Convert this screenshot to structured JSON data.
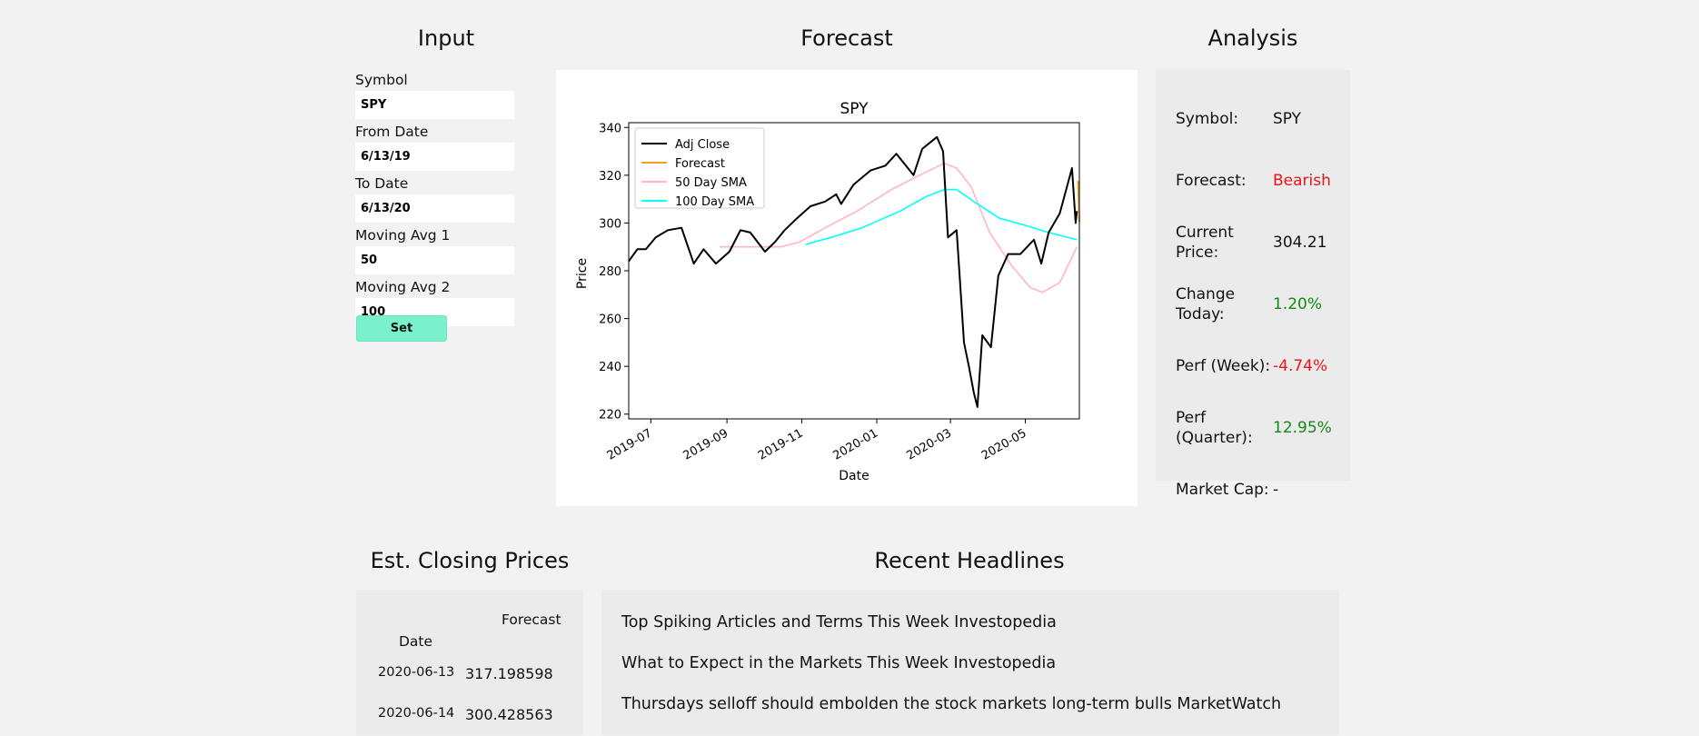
{
  "headers": {
    "input": "Input",
    "forecast": "Forecast",
    "analysis": "Analysis",
    "est_closing": "Est. Closing Prices",
    "headlines": "Recent Headlines"
  },
  "inputs": {
    "symbol_label": "Symbol",
    "symbol_value": "SPY",
    "from_label": "From Date",
    "from_value": "6/13/19",
    "to_label": "To Date",
    "to_value": "6/13/20",
    "ma1_label": "Moving Avg 1",
    "ma1_value": "50",
    "ma2_label": "Moving Avg 2",
    "ma2_value": "100",
    "set_label": "Set"
  },
  "analysis": {
    "rows": [
      {
        "label": "Symbol:",
        "value": "SPY",
        "color": "#111111"
      },
      {
        "label": "Forecast:",
        "value": "Bearish",
        "color": "#e8141a"
      },
      {
        "label": "Current Price:",
        "value": "304.21",
        "color": "#111111"
      },
      {
        "label": "Change Today:",
        "value": "1.20%",
        "color": "#148a14"
      },
      {
        "label": "Perf (Week):",
        "value": "-4.74%",
        "color": "#e8141a"
      },
      {
        "label": "Perf (Quarter):",
        "value": "12.95%",
        "color": "#148a14"
      },
      {
        "label": "Market Cap:",
        "value": "-",
        "color": "#111111"
      }
    ]
  },
  "est_closing": {
    "column_header": "Forecast",
    "index_header": "Date",
    "rows": [
      {
        "date": "2020-06-13",
        "value": "317.198598"
      },
      {
        "date": "2020-06-14",
        "value": "300.428563"
      }
    ]
  },
  "headlines": [
    "Top Spiking Articles and Terms This Week Investopedia",
    "What to Expect in the Markets This Week Investopedia",
    "Thursdays selloff should embolden the stock markets long-term bulls MarketWatch"
  ],
  "chart_data": {
    "type": "line",
    "title": "SPY",
    "xlabel": "Date",
    "ylabel": "Price",
    "ylim": [
      218,
      342
    ],
    "xlim": [
      "2019-06-13",
      "2020-06-14"
    ],
    "yticks": [
      220,
      240,
      260,
      280,
      300,
      320,
      340
    ],
    "xticks": [
      "2019-07",
      "2019-09",
      "2019-11",
      "2020-01",
      "2020-03",
      "2020-05"
    ],
    "legend_position": "top-left",
    "grid": false,
    "series": [
      {
        "name": "Adj Close",
        "color": "#000000",
        "points": [
          [
            "2019-06-13",
            284
          ],
          [
            "2019-06-20",
            289
          ],
          [
            "2019-06-27",
            289
          ],
          [
            "2019-07-05",
            294
          ],
          [
            "2019-07-15",
            297
          ],
          [
            "2019-07-26",
            298
          ],
          [
            "2019-08-05",
            283
          ],
          [
            "2019-08-13",
            289
          ],
          [
            "2019-08-23",
            283
          ],
          [
            "2019-09-03",
            288
          ],
          [
            "2019-09-12",
            297
          ],
          [
            "2019-09-20",
            296
          ],
          [
            "2019-10-02",
            288
          ],
          [
            "2019-10-10",
            292
          ],
          [
            "2019-10-18",
            297
          ],
          [
            "2019-10-28",
            302
          ],
          [
            "2019-11-08",
            307
          ],
          [
            "2019-11-20",
            309
          ],
          [
            "2019-11-29",
            312
          ],
          [
            "2019-12-03",
            308
          ],
          [
            "2019-12-13",
            316
          ],
          [
            "2019-12-27",
            322
          ],
          [
            "2020-01-08",
            324
          ],
          [
            "2020-01-17",
            329
          ],
          [
            "2020-01-31",
            320
          ],
          [
            "2020-02-07",
            331
          ],
          [
            "2020-02-19",
            336
          ],
          [
            "2020-02-24",
            330
          ],
          [
            "2020-02-28",
            294
          ],
          [
            "2020-03-06",
            297
          ],
          [
            "2020-03-09",
            274
          ],
          [
            "2020-03-12",
            250
          ],
          [
            "2020-03-16",
            240
          ],
          [
            "2020-03-20",
            229
          ],
          [
            "2020-03-23",
            223
          ],
          [
            "2020-03-27",
            253
          ],
          [
            "2020-04-03",
            248
          ],
          [
            "2020-04-09",
            278
          ],
          [
            "2020-04-17",
            287
          ],
          [
            "2020-04-27",
            287
          ],
          [
            "2020-05-08",
            293
          ],
          [
            "2020-05-14",
            283
          ],
          [
            "2020-05-20",
            296
          ],
          [
            "2020-05-29",
            304
          ],
          [
            "2020-06-08",
            323
          ],
          [
            "2020-06-11",
            300
          ],
          [
            "2020-06-12",
            305
          ]
        ]
      },
      {
        "name": "Forecast",
        "color": "#f0a020",
        "points": [
          [
            "2020-06-12",
            317
          ],
          [
            "2020-06-13",
            317.2
          ],
          [
            "2020-06-14",
            300.4
          ]
        ]
      },
      {
        "name": "50 Day SMA",
        "color": "#ffb6c1",
        "points": [
          [
            "2019-08-26",
            290
          ],
          [
            "2019-09-20",
            290
          ],
          [
            "2019-10-15",
            290
          ],
          [
            "2019-10-30",
            292
          ],
          [
            "2019-11-20",
            298
          ],
          [
            "2019-12-16",
            305
          ],
          [
            "2020-01-13",
            314
          ],
          [
            "2020-02-05",
            320
          ],
          [
            "2020-02-25",
            325
          ],
          [
            "2020-03-06",
            323
          ],
          [
            "2020-03-18",
            315
          ],
          [
            "2020-04-02",
            296
          ],
          [
            "2020-04-20",
            282
          ],
          [
            "2020-05-05",
            273
          ],
          [
            "2020-05-15",
            271
          ],
          [
            "2020-05-29",
            275
          ],
          [
            "2020-06-12",
            290
          ]
        ]
      },
      {
        "name": "100 Day SMA",
        "color": "#00ffff",
        "points": [
          [
            "2019-11-04",
            291
          ],
          [
            "2019-11-25",
            294
          ],
          [
            "2019-12-20",
            298
          ],
          [
            "2020-01-20",
            305
          ],
          [
            "2020-02-10",
            311
          ],
          [
            "2020-02-25",
            314
          ],
          [
            "2020-03-06",
            314
          ],
          [
            "2020-03-20",
            309
          ],
          [
            "2020-04-10",
            302
          ],
          [
            "2020-05-01",
            299
          ],
          [
            "2020-05-20",
            296
          ],
          [
            "2020-06-12",
            293
          ]
        ]
      }
    ]
  }
}
